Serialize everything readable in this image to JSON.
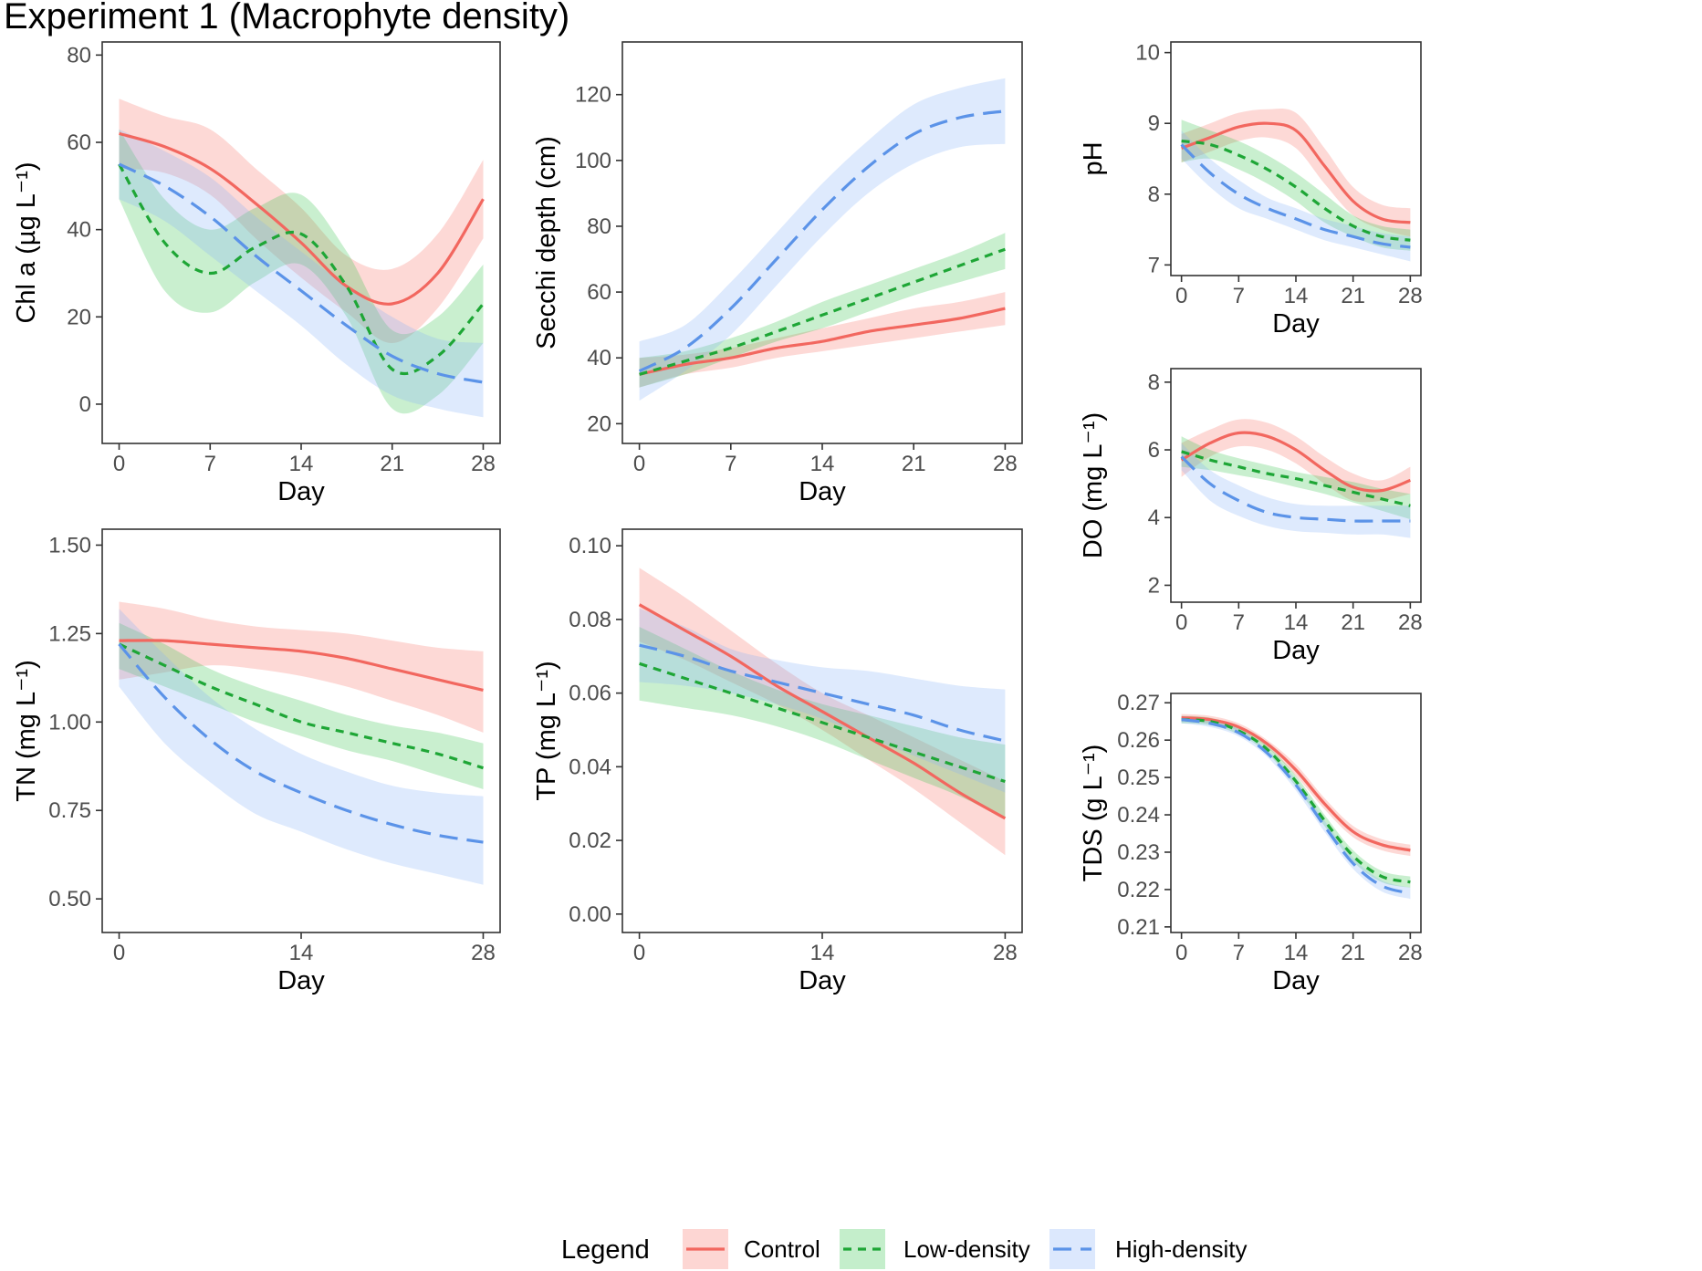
{
  "figure_title": "Experiment 1 (Macrophyte density)",
  "legend": {
    "title": "Legend",
    "items": [
      {
        "key": "control",
        "label": "Control"
      },
      {
        "key": "low",
        "label": "Low-density"
      },
      {
        "key": "high",
        "label": "High-density"
      }
    ]
  },
  "colors": {
    "control": "#F2675F",
    "low": "#1EA636",
    "high": "#5B93E8",
    "control_band": "#F8766D",
    "low_band": "#3CC653",
    "high_band": "#8AB4F8"
  },
  "chart_data": [
    {
      "id": "chla",
      "type": "line",
      "xlabel": "Day",
      "ylabel": "Chl a (µg L⁻¹)",
      "xlim": [
        -1.3,
        29.3
      ],
      "ylim": [
        -9,
        83
      ],
      "xticks": [
        0,
        7,
        14,
        21,
        28
      ],
      "yticks": [
        0,
        20,
        40,
        60,
        80
      ],
      "x": [
        0,
        3.5,
        7,
        10.5,
        14,
        17.5,
        21,
        24.5,
        28
      ],
      "series": [
        {
          "key": "control",
          "mean": [
            62,
            59,
            54,
            46,
            37,
            27,
            23,
            30,
            47
          ],
          "lower": [
            54,
            53,
            48,
            38,
            29,
            21,
            14,
            22,
            38
          ],
          "upper": [
            70,
            66,
            63,
            54,
            45,
            34,
            31,
            39,
            56
          ]
        },
        {
          "key": "low",
          "mean": [
            55,
            37,
            30,
            36,
            39,
            27,
            8,
            11,
            23
          ],
          "lower": [
            47,
            26,
            21,
            28,
            32,
            20,
            -1,
            2,
            14
          ],
          "upper": [
            63,
            47,
            40,
            45,
            48,
            35,
            17,
            20,
            32
          ]
        },
        {
          "key": "high",
          "mean": [
            55,
            50,
            43,
            34,
            26,
            18,
            11,
            7,
            5
          ],
          "lower": [
            47,
            42,
            34,
            26,
            18,
            9,
            2,
            -1,
            -3
          ],
          "upper": [
            63,
            58,
            52,
            43,
            35,
            27,
            20,
            15,
            14
          ]
        }
      ]
    },
    {
      "id": "secchi",
      "type": "line",
      "xlabel": "Day",
      "ylabel": "Secchi depth (cm)",
      "xlim": [
        -1.3,
        29.3
      ],
      "ylim": [
        14,
        136
      ],
      "xticks": [
        0,
        7,
        14,
        21,
        28
      ],
      "yticks": [
        20,
        40,
        60,
        80,
        100,
        120
      ],
      "x": [
        0,
        3.5,
        7,
        10.5,
        14,
        17.5,
        21,
        24.5,
        28
      ],
      "series": [
        {
          "key": "control",
          "mean": [
            35,
            38,
            40,
            43,
            45,
            48,
            50,
            52,
            55
          ],
          "lower": [
            31,
            35,
            37,
            40,
            42,
            44,
            46,
            48,
            50
          ],
          "upper": [
            40,
            41,
            43,
            46,
            49,
            52,
            55,
            57,
            60
          ]
        },
        {
          "key": "low",
          "mean": [
            35,
            39,
            43,
            48,
            53,
            58,
            63,
            68,
            73
          ],
          "lower": [
            31,
            35,
            40,
            45,
            49,
            54,
            59,
            63,
            67
          ],
          "upper": [
            40,
            42,
            46,
            51,
            57,
            62,
            67,
            72,
            78
          ]
        },
        {
          "key": "high",
          "mean": [
            36,
            43,
            55,
            70,
            85,
            98,
            108,
            113,
            115
          ],
          "lower": [
            27,
            36,
            47,
            62,
            77,
            90,
            99,
            104,
            105
          ],
          "upper": [
            45,
            50,
            63,
            78,
            93,
            106,
            117,
            122,
            125
          ]
        }
      ]
    },
    {
      "id": "ph",
      "type": "line",
      "xlabel": "Day",
      "ylabel": "pH",
      "xlim": [
        -1.3,
        29.3
      ],
      "ylim": [
        6.85,
        10.15
      ],
      "xticks": [
        0,
        7,
        14,
        21,
        28
      ],
      "yticks": [
        7,
        8,
        9,
        10
      ],
      "x": [
        0,
        3.5,
        7,
        10.5,
        14,
        17.5,
        21,
        24.5,
        28
      ],
      "series": [
        {
          "key": "control",
          "mean": [
            8.65,
            8.8,
            8.95,
            9.0,
            8.9,
            8.4,
            7.9,
            7.65,
            7.6
          ],
          "lower": [
            8.45,
            8.6,
            8.75,
            8.8,
            8.65,
            8.15,
            7.7,
            7.5,
            7.4
          ],
          "upper": [
            8.85,
            9.0,
            9.15,
            9.2,
            9.15,
            8.65,
            8.1,
            7.85,
            7.8
          ]
        },
        {
          "key": "low",
          "mean": [
            8.75,
            8.7,
            8.55,
            8.35,
            8.1,
            7.8,
            7.55,
            7.4,
            7.35
          ],
          "lower": [
            8.45,
            8.5,
            8.35,
            8.15,
            7.9,
            7.6,
            7.4,
            7.25,
            7.2
          ],
          "upper": [
            9.05,
            8.9,
            8.75,
            8.55,
            8.3,
            8.0,
            7.7,
            7.55,
            7.5
          ]
        },
        {
          "key": "high",
          "mean": [
            8.7,
            8.3,
            8.0,
            7.8,
            7.65,
            7.5,
            7.4,
            7.3,
            7.25
          ],
          "lower": [
            8.5,
            8.1,
            7.8,
            7.65,
            7.5,
            7.35,
            7.25,
            7.15,
            7.05
          ],
          "upper": [
            8.9,
            8.5,
            8.2,
            7.95,
            7.8,
            7.65,
            7.55,
            7.45,
            7.4
          ]
        }
      ]
    },
    {
      "id": "do",
      "type": "line",
      "xlabel": "Day",
      "ylabel": "DO (mg L⁻¹)",
      "xlim": [
        -1.3,
        29.3
      ],
      "ylim": [
        1.5,
        8.4
      ],
      "xticks": [
        0,
        7,
        14,
        21,
        28
      ],
      "yticks": [
        2,
        4,
        6,
        8
      ],
      "x": [
        0,
        3.5,
        7,
        10.5,
        14,
        17.5,
        21,
        24.5,
        28
      ],
      "series": [
        {
          "key": "control",
          "mean": [
            5.7,
            6.2,
            6.5,
            6.4,
            6.0,
            5.4,
            4.9,
            4.8,
            5.1
          ],
          "lower": [
            5.2,
            5.8,
            6.1,
            6.0,
            5.6,
            5.0,
            4.5,
            4.5,
            4.7
          ],
          "upper": [
            6.2,
            6.6,
            6.9,
            6.8,
            6.4,
            5.8,
            5.3,
            5.1,
            5.5
          ]
        },
        {
          "key": "low",
          "mean": [
            5.95,
            5.7,
            5.5,
            5.3,
            5.15,
            4.95,
            4.75,
            4.55,
            4.35
          ],
          "lower": [
            5.5,
            5.4,
            5.25,
            5.1,
            4.9,
            4.7,
            4.45,
            4.2,
            3.95
          ],
          "upper": [
            6.4,
            6.0,
            5.75,
            5.55,
            5.35,
            5.2,
            5.05,
            4.85,
            4.7
          ]
        },
        {
          "key": "high",
          "mean": [
            5.8,
            5.0,
            4.5,
            4.15,
            4.0,
            3.95,
            3.9,
            3.9,
            3.9
          ],
          "lower": [
            5.4,
            4.5,
            4.05,
            3.75,
            3.6,
            3.55,
            3.5,
            3.5,
            3.4
          ],
          "upper": [
            6.2,
            5.4,
            4.95,
            4.6,
            4.4,
            4.35,
            4.35,
            4.35,
            4.35
          ]
        }
      ]
    },
    {
      "id": "tn",
      "type": "line",
      "xlabel": "Day",
      "ylabel": "TN (mg L⁻¹)",
      "xlim": [
        -1.3,
        29.3
      ],
      "ylim": [
        0.405,
        1.545
      ],
      "xticks": [
        0,
        14,
        28
      ],
      "yticks": [
        0.5,
        0.75,
        1.0,
        1.25,
        1.5
      ],
      "ytick_labels": [
        "0.50",
        "0.75",
        "1.00",
        "1.25",
        "1.50"
      ],
      "x": [
        0,
        3.5,
        7,
        10.5,
        14,
        17.5,
        21,
        24.5,
        28
      ],
      "series": [
        {
          "key": "control",
          "mean": [
            1.23,
            1.23,
            1.22,
            1.21,
            1.2,
            1.18,
            1.15,
            1.12,
            1.09
          ],
          "lower": [
            1.12,
            1.14,
            1.16,
            1.15,
            1.13,
            1.1,
            1.06,
            1.02,
            0.97
          ],
          "upper": [
            1.34,
            1.32,
            1.29,
            1.27,
            1.26,
            1.25,
            1.23,
            1.21,
            1.2
          ]
        },
        {
          "key": "low",
          "mean": [
            1.22,
            1.16,
            1.1,
            1.05,
            1.0,
            0.97,
            0.94,
            0.91,
            0.87
          ],
          "lower": [
            1.15,
            1.1,
            1.05,
            1.0,
            0.96,
            0.92,
            0.89,
            0.85,
            0.81
          ],
          "upper": [
            1.28,
            1.22,
            1.15,
            1.1,
            1.06,
            1.02,
            0.99,
            0.97,
            0.94
          ]
        },
        {
          "key": "high",
          "mean": [
            1.22,
            1.07,
            0.95,
            0.86,
            0.8,
            0.75,
            0.71,
            0.68,
            0.66
          ],
          "lower": [
            1.1,
            0.94,
            0.83,
            0.74,
            0.69,
            0.64,
            0.6,
            0.57,
            0.54
          ],
          "upper": [
            1.32,
            1.19,
            1.07,
            0.98,
            0.91,
            0.86,
            0.82,
            0.8,
            0.79
          ]
        }
      ]
    },
    {
      "id": "tp",
      "type": "line",
      "xlabel": "Day",
      "ylabel": "TP (mg L⁻¹)",
      "xlim": [
        -1.3,
        29.3
      ],
      "ylim": [
        -0.005,
        0.1045
      ],
      "xticks": [
        0,
        14,
        28
      ],
      "yticks": [
        0,
        0.02,
        0.04,
        0.06,
        0.08,
        0.1
      ],
      "ytick_labels": [
        "0.00",
        "0.02",
        "0.04",
        "0.06",
        "0.08",
        "0.10"
      ],
      "x": [
        0,
        3.5,
        7,
        10.5,
        14,
        17.5,
        21,
        24.5,
        28
      ],
      "series": [
        {
          "key": "control",
          "mean": [
            0.084,
            0.077,
            0.07,
            0.062,
            0.055,
            0.048,
            0.041,
            0.033,
            0.026
          ],
          "lower": [
            0.074,
            0.069,
            0.063,
            0.057,
            0.05,
            0.042,
            0.034,
            0.025,
            0.016
          ],
          "upper": [
            0.094,
            0.086,
            0.077,
            0.068,
            0.06,
            0.054,
            0.048,
            0.042,
            0.036
          ]
        },
        {
          "key": "low",
          "mean": [
            0.068,
            0.064,
            0.06,
            0.056,
            0.052,
            0.048,
            0.044,
            0.04,
            0.036
          ],
          "lower": [
            0.058,
            0.056,
            0.054,
            0.051,
            0.047,
            0.042,
            0.037,
            0.032,
            0.026
          ],
          "upper": [
            0.078,
            0.072,
            0.066,
            0.061,
            0.057,
            0.054,
            0.051,
            0.048,
            0.046
          ]
        },
        {
          "key": "high",
          "mean": [
            0.073,
            0.07,
            0.066,
            0.063,
            0.06,
            0.057,
            0.054,
            0.05,
            0.047
          ],
          "lower": [
            0.063,
            0.062,
            0.06,
            0.057,
            0.053,
            0.048,
            0.043,
            0.038,
            0.033
          ],
          "upper": [
            0.083,
            0.078,
            0.072,
            0.069,
            0.067,
            0.066,
            0.064,
            0.062,
            0.061
          ]
        }
      ]
    },
    {
      "id": "tds",
      "type": "line",
      "xlabel": "Day",
      "ylabel": "TDS (g L⁻¹)",
      "xlim": [
        -1.3,
        29.3
      ],
      "ylim": [
        0.2085,
        0.2725
      ],
      "xticks": [
        0,
        7,
        14,
        21,
        28
      ],
      "yticks": [
        0.21,
        0.22,
        0.23,
        0.24,
        0.25,
        0.26,
        0.27
      ],
      "ytick_labels": [
        "0.21",
        "0.22",
        "0.23",
        "0.24",
        "0.25",
        "0.26",
        "0.27"
      ],
      "x": [
        0,
        3.5,
        7,
        10.5,
        14,
        17.5,
        21,
        24.5,
        28
      ],
      "series": [
        {
          "key": "control",
          "mean": [
            0.266,
            0.2655,
            0.2635,
            0.259,
            0.252,
            0.243,
            0.2355,
            0.232,
            0.2305
          ],
          "lower": [
            0.265,
            0.2645,
            0.2625,
            0.258,
            0.2505,
            0.2415,
            0.234,
            0.2305,
            0.229
          ],
          "upper": [
            0.267,
            0.2665,
            0.2645,
            0.26,
            0.2535,
            0.2445,
            0.237,
            0.2335,
            0.232
          ]
        },
        {
          "key": "low",
          "mean": [
            0.2655,
            0.265,
            0.2625,
            0.2575,
            0.249,
            0.2385,
            0.229,
            0.2235,
            0.222
          ],
          "lower": [
            0.2645,
            0.264,
            0.2615,
            0.2565,
            0.2475,
            0.237,
            0.2275,
            0.222,
            0.2205
          ],
          "upper": [
            0.2665,
            0.266,
            0.2635,
            0.2585,
            0.2505,
            0.24,
            0.2305,
            0.225,
            0.2235
          ]
        },
        {
          "key": "high",
          "mean": [
            0.2655,
            0.2645,
            0.262,
            0.2565,
            0.248,
            0.237,
            0.227,
            0.221,
            0.219
          ],
          "lower": [
            0.2645,
            0.2635,
            0.261,
            0.2555,
            0.2465,
            0.2355,
            0.2255,
            0.2195,
            0.2175
          ],
          "upper": [
            0.2665,
            0.2655,
            0.263,
            0.2575,
            0.2495,
            0.2385,
            0.2285,
            0.2225,
            0.2205
          ]
        }
      ]
    }
  ]
}
